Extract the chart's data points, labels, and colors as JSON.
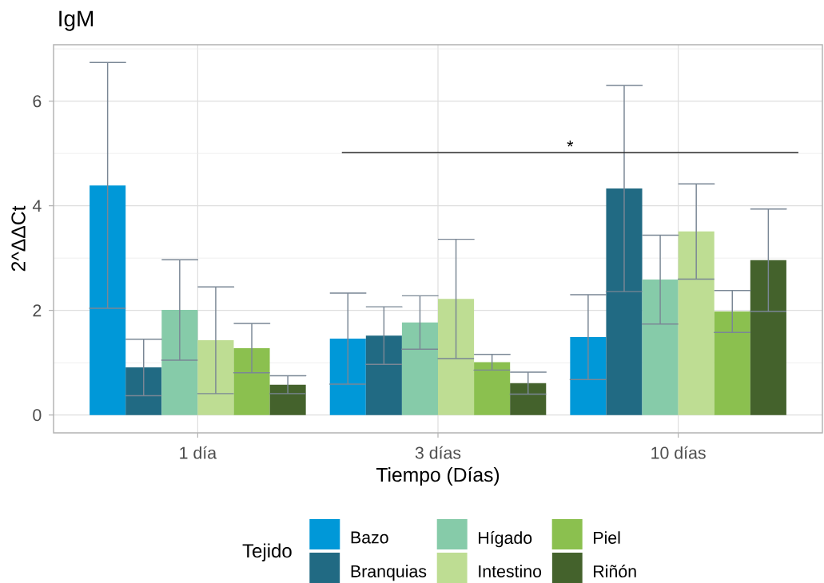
{
  "chart_data": {
    "type": "bar",
    "title": "IgM",
    "xlabel": "Tiempo (Días)",
    "ylabel": "2^ΔΔCt",
    "legend_title": "Tejido",
    "categories": [
      "1 día",
      "3 días",
      "10 días"
    ],
    "series": [
      {
        "name": "Bazo",
        "color": "#0098d8",
        "values": [
          4.39,
          1.46,
          1.49
        ],
        "errors": [
          2.35,
          0.87,
          0.81
        ]
      },
      {
        "name": "Branquias",
        "color": "#216a83",
        "values": [
          0.91,
          1.52,
          4.33
        ],
        "errors": [
          0.54,
          0.55,
          1.97
        ]
      },
      {
        "name": "Hígado",
        "color": "#86cba9",
        "values": [
          2.01,
          1.77,
          2.59
        ],
        "errors": [
          0.96,
          0.51,
          0.85
        ]
      },
      {
        "name": "Intestino",
        "color": "#bedd93",
        "values": [
          1.43,
          2.22,
          3.51
        ],
        "errors": [
          1.02,
          1.14,
          0.91
        ]
      },
      {
        "name": "Piel",
        "color": "#8bc04f",
        "values": [
          1.28,
          1.01,
          1.98
        ],
        "errors": [
          0.47,
          0.15,
          0.4
        ]
      },
      {
        "name": "Riñón",
        "color": "#44622c",
        "values": [
          0.58,
          0.61,
          2.96
        ],
        "errors": [
          0.17,
          0.21,
          0.98
        ]
      }
    ],
    "ylim": [
      -0.34,
      7.08
    ],
    "yticks": [
      0,
      2,
      4,
      6
    ],
    "grid": true,
    "legend": "bottom",
    "annotations": [
      "*"
    ]
  }
}
